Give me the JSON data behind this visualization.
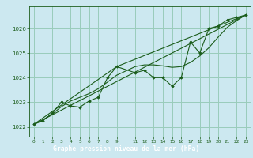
{
  "background_color": "#cce8f0",
  "plot_bg_color": "#cce8f0",
  "title_bg_color": "#2d6e2d",
  "grid_color": "#99ccbb",
  "line_color": "#1a5c1a",
  "marker_color": "#1a5c1a",
  "title_text": "Graphe pression niveau de la mer (hPa)",
  "title_text_color": "#ffffff",
  "xlim": [
    -0.5,
    23.5
  ],
  "ylim": [
    1021.6,
    1026.9
  ],
  "yticks": [
    1022,
    1023,
    1024,
    1025,
    1026
  ],
  "xticks": [
    0,
    1,
    2,
    3,
    4,
    5,
    6,
    7,
    8,
    9,
    11,
    12,
    13,
    14,
    15,
    16,
    17,
    18,
    19,
    20,
    21,
    22,
    23
  ],
  "main_line": [
    [
      0,
      1022.1
    ],
    [
      1,
      1022.25
    ],
    [
      2,
      1022.55
    ],
    [
      3,
      1023.0
    ],
    [
      4,
      1022.85
    ],
    [
      5,
      1022.8
    ],
    [
      6,
      1023.05
    ],
    [
      7,
      1023.2
    ],
    [
      8,
      1024.0
    ],
    [
      9,
      1024.45
    ],
    [
      11,
      1024.2
    ],
    [
      12,
      1024.3
    ],
    [
      13,
      1024.0
    ],
    [
      14,
      1024.0
    ],
    [
      15,
      1023.65
    ],
    [
      16,
      1024.0
    ],
    [
      17,
      1025.45
    ],
    [
      18,
      1025.0
    ],
    [
      19,
      1026.0
    ],
    [
      20,
      1026.1
    ],
    [
      21,
      1026.35
    ],
    [
      22,
      1026.45
    ],
    [
      23,
      1026.55
    ]
  ],
  "smooth_line": [
    [
      0,
      1022.1
    ],
    [
      1,
      1022.28
    ],
    [
      2,
      1022.52
    ],
    [
      3,
      1022.82
    ],
    [
      4,
      1023.05
    ],
    [
      5,
      1023.2
    ],
    [
      6,
      1023.35
    ],
    [
      7,
      1023.55
    ],
    [
      8,
      1023.82
    ],
    [
      9,
      1024.1
    ],
    [
      11,
      1024.45
    ],
    [
      12,
      1024.52
    ],
    [
      13,
      1024.52
    ],
    [
      14,
      1024.48
    ],
    [
      15,
      1024.42
    ],
    [
      16,
      1024.45
    ],
    [
      17,
      1024.62
    ],
    [
      18,
      1024.88
    ],
    [
      19,
      1025.22
    ],
    [
      20,
      1025.65
    ],
    [
      21,
      1026.05
    ],
    [
      22,
      1026.32
    ],
    [
      23,
      1026.55
    ]
  ],
  "trend_line_1": [
    [
      0,
      1022.1
    ],
    [
      23,
      1026.55
    ]
  ],
  "trend_line_2": [
    [
      0,
      1022.1
    ],
    [
      9,
      1024.45
    ],
    [
      23,
      1026.55
    ]
  ]
}
